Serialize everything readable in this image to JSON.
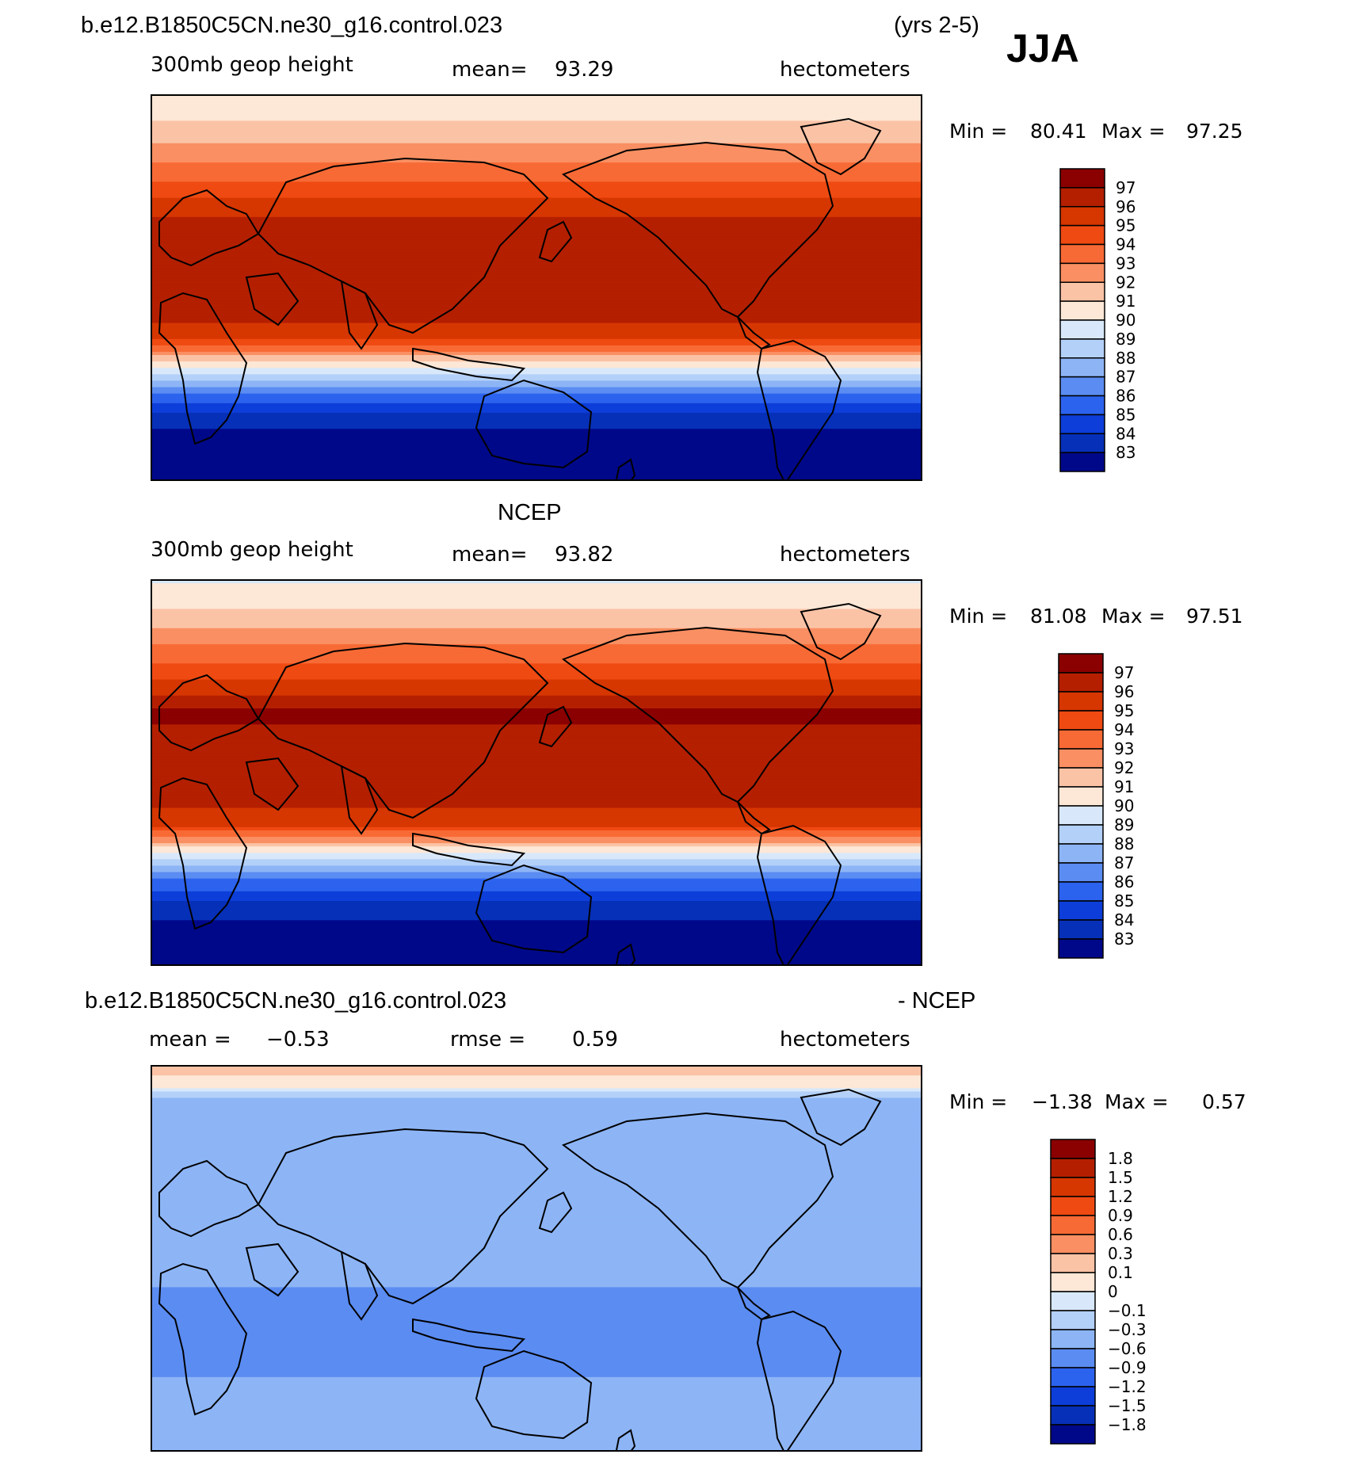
{
  "header": {
    "case_name": "b.e12.B1850C5CN.ne30_g16.control.023",
    "years": "(yrs 2-5)",
    "season": "JJA"
  },
  "panels": [
    {
      "id": "model",
      "title": "",
      "variable": "300mb geop height",
      "stat_label": "mean=",
      "stat_value": "93.29",
      "units": "hectometers",
      "min_label": "Min =",
      "min_value": "80.41",
      "max_label": "Max =",
      "max_value": "97.25",
      "colorbar_labels": [
        "97",
        "96",
        "95",
        "94",
        "93",
        "92",
        "91",
        "90",
        "89",
        "88",
        "87",
        "86",
        "85",
        "84",
        "83"
      ],
      "colorbar_colors": [
        "#8b0000",
        "#b41f00",
        "#d63600",
        "#ef4a12",
        "#f86a35",
        "#f98f62",
        "#fbc3a6",
        "#fde7d6",
        "#d8e8fa",
        "#b3d0f8",
        "#8db5f6",
        "#5b8cf2",
        "#2c63ee",
        "#0d3ed9",
        "#0730b8",
        "#00088a"
      ]
    },
    {
      "id": "obs",
      "title": "NCEP",
      "variable": "300mb geop height",
      "stat_label": "mean=",
      "stat_value": "93.82",
      "units": "hectometers",
      "min_label": "Min =",
      "min_value": "81.08",
      "max_label": "Max =",
      "max_value": "97.51",
      "colorbar_labels": [
        "97",
        "96",
        "95",
        "94",
        "93",
        "92",
        "91",
        "90",
        "89",
        "88",
        "87",
        "86",
        "85",
        "84",
        "83"
      ],
      "colorbar_colors": [
        "#8b0000",
        "#b41f00",
        "#d63600",
        "#ef4a12",
        "#f86a35",
        "#f98f62",
        "#fbc3a6",
        "#fde7d6",
        "#d8e8fa",
        "#b3d0f8",
        "#8db5f6",
        "#5b8cf2",
        "#2c63ee",
        "#0d3ed9",
        "#0730b8",
        "#00088a"
      ]
    },
    {
      "id": "diff",
      "title_left": "b.e12.B1850C5CN.ne30_g16.control.023",
      "title_right": "- NCEP",
      "stat_label": "mean =",
      "stat_value": "−0.53",
      "rmse_label": "rmse =",
      "rmse_value": "0.59",
      "units": "hectometers",
      "min_label": "Min =",
      "min_value": "−1.38",
      "max_label": "Max =",
      "max_value": "0.57",
      "colorbar_labels": [
        "1.8",
        "1.5",
        "1.2",
        "0.9",
        "0.6",
        "0.3",
        "0.1",
        "0",
        "−0.1",
        "−0.3",
        "−0.6",
        "−0.9",
        "−1.2",
        "−1.5",
        "−1.8"
      ],
      "colorbar_colors": [
        "#8b0000",
        "#b41f00",
        "#d63600",
        "#ef4a12",
        "#f86a35",
        "#f98f62",
        "#fbc3a6",
        "#fde7d6",
        "#d8e8fa",
        "#b3d0f8",
        "#8db5f6",
        "#5b8cf2",
        "#2c63ee",
        "#0d3ed9",
        "#0730b8",
        "#00088a"
      ]
    }
  ],
  "chart_data": [
    {
      "type": "heatmap",
      "title": "b.e12.B1850C5CN.ne30_g16.control.023 (yrs 2-5) JJA",
      "variable": "300mb geop height",
      "units": "hectometers",
      "mean": 93.29,
      "min": 80.41,
      "max": 97.25,
      "contour_levels": [
        83,
        84,
        85,
        86,
        87,
        88,
        89,
        90,
        91,
        92,
        93,
        94,
        95,
        96,
        97
      ],
      "lat_band_fill": [
        {
          "lat": 90,
          "value": 90.2
        },
        {
          "lat": 75,
          "value": 91.2
        },
        {
          "lat": 65,
          "value": 92.2
        },
        {
          "lat": 55,
          "value": 93.4
        },
        {
          "lat": 45,
          "value": 94.6
        },
        {
          "lat": 38,
          "value": 95.5
        },
        {
          "lat": 30,
          "value": 96.2
        },
        {
          "lat": 0,
          "value": 96.4
        },
        {
          "lat": -15,
          "value": 96.1
        },
        {
          "lat": -25,
          "value": 94.8
        },
        {
          "lat": -32,
          "value": 92.0
        },
        {
          "lat": -40,
          "value": 89.0
        },
        {
          "lat": -50,
          "value": 85.8
        },
        {
          "lat": -60,
          "value": 83.8
        },
        {
          "lat": -70,
          "value": 82.5
        },
        {
          "lat": -90,
          "value": 81.0
        }
      ]
    },
    {
      "type": "heatmap",
      "title": "NCEP",
      "variable": "300mb geop height",
      "units": "hectometers",
      "mean": 93.82,
      "min": 81.08,
      "max": 97.51,
      "contour_levels": [
        83,
        84,
        85,
        86,
        87,
        88,
        89,
        90,
        91,
        92,
        93,
        94,
        95,
        96,
        97
      ],
      "lat_band_fill": [
        {
          "lat": 90,
          "value": 89.8
        },
        {
          "lat": 75,
          "value": 91.2
        },
        {
          "lat": 65,
          "value": 92.3
        },
        {
          "lat": 55,
          "value": 93.6
        },
        {
          "lat": 45,
          "value": 94.8
        },
        {
          "lat": 38,
          "value": 95.8
        },
        {
          "lat": 28,
          "value": 97.2
        },
        {
          "lat": 10,
          "value": 96.5
        },
        {
          "lat": -15,
          "value": 96.2
        },
        {
          "lat": -25,
          "value": 95.0
        },
        {
          "lat": -32,
          "value": 92.2
        },
        {
          "lat": -40,
          "value": 89.2
        },
        {
          "lat": -50,
          "value": 86.0
        },
        {
          "lat": -60,
          "value": 84.0
        },
        {
          "lat": -70,
          "value": 82.8
        },
        {
          "lat": -90,
          "value": 81.5
        }
      ]
    },
    {
      "type": "heatmap",
      "title": "b.e12.B1850C5CN.ne30_g16.control.023 - NCEP",
      "units": "hectometers",
      "mean": -0.53,
      "rmse": 0.59,
      "min": -1.38,
      "max": 0.57,
      "contour_levels": [
        -1.8,
        -1.5,
        -1.2,
        -0.9,
        -0.6,
        -0.3,
        -0.1,
        0,
        0.1,
        0.3,
        0.6,
        0.9,
        1.2,
        1.5,
        1.8
      ],
      "lat_band_fill": [
        {
          "lat": 90,
          "value": 0.15
        },
        {
          "lat": 80,
          "value": 0.05
        },
        {
          "lat": 75,
          "value": -0.35
        },
        {
          "lat": 60,
          "value": -0.45
        },
        {
          "lat": 50,
          "value": -0.6
        },
        {
          "lat": 30,
          "value": -0.5
        },
        {
          "lat": 0,
          "value": -0.5
        },
        {
          "lat": -20,
          "value": -0.65
        },
        {
          "lat": -40,
          "value": -0.75
        },
        {
          "lat": -60,
          "value": -0.55
        },
        {
          "lat": -80,
          "value": -0.55
        },
        {
          "lat": -90,
          "value": -0.5
        }
      ]
    }
  ]
}
